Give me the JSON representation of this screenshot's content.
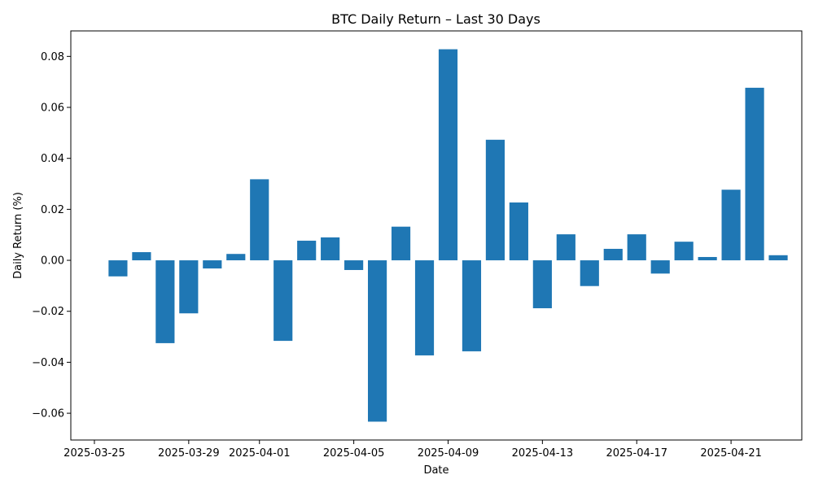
{
  "chart_data": {
    "type": "bar",
    "title": "BTC Daily Return – Last 30 Days",
    "xlabel": "Date",
    "ylabel": "Daily Return (%)",
    "color": "#1f77b4",
    "x": [
      "2025-03-26",
      "2025-03-27",
      "2025-03-28",
      "2025-03-29",
      "2025-03-30",
      "2025-03-31",
      "2025-04-01",
      "2025-04-02",
      "2025-04-03",
      "2025-04-04",
      "2025-04-05",
      "2025-04-06",
      "2025-04-07",
      "2025-04-08",
      "2025-04-09",
      "2025-04-10",
      "2025-04-11",
      "2025-04-12",
      "2025-04-13",
      "2025-04-14",
      "2025-04-15",
      "2025-04-16",
      "2025-04-17",
      "2025-04-18",
      "2025-04-19",
      "2025-04-20",
      "2025-04-21",
      "2025-04-22",
      "2025-04-23"
    ],
    "values": [
      -0.0063,
      0.0032,
      -0.0325,
      -0.0208,
      -0.0032,
      0.0025,
      0.0318,
      -0.0316,
      0.0077,
      0.009,
      -0.0038,
      -0.0633,
      0.0132,
      -0.0373,
      0.0828,
      -0.0357,
      0.0473,
      0.0227,
      -0.0188,
      0.0102,
      -0.0101,
      0.0045,
      0.0102,
      -0.0052,
      0.0073,
      0.0013,
      0.0277,
      0.0677,
      0.002
    ],
    "x_ticks": [
      "2025-03-25",
      "2025-03-29",
      "2025-04-01",
      "2025-04-05",
      "2025-04-09",
      "2025-04-13",
      "2025-04-17",
      "2025-04-21"
    ],
    "y_ticks": [
      0.08,
      0.06,
      0.04,
      0.02,
      0.0,
      -0.02,
      -0.04,
      -0.06
    ],
    "y_tick_labels": [
      "0.08",
      "0.06",
      "0.04",
      "0.02",
      "0.00",
      "−0.02",
      "−0.04",
      "−0.06"
    ],
    "ylim": [
      -0.0705,
      0.09
    ],
    "xlim": [
      "2025-03-24",
      "2025-04-24"
    ],
    "grid": false,
    "legend": "none"
  }
}
